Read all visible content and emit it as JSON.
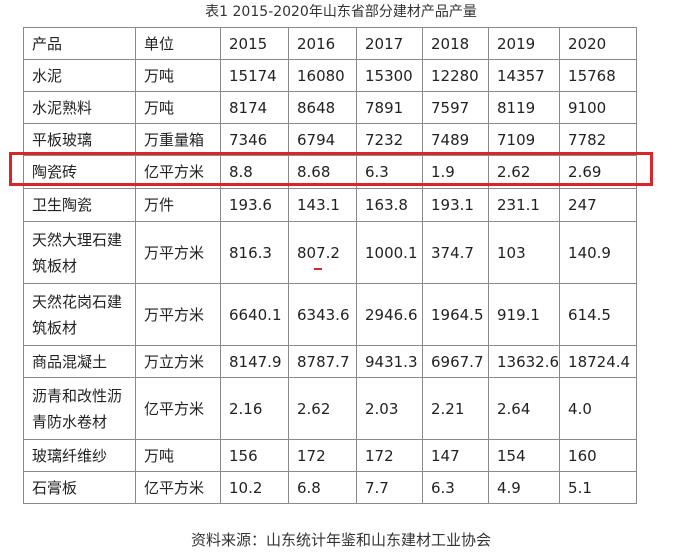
{
  "title": "表1  2015-2020年山东省部分建材产品产量",
  "table": {
    "headers": [
      "产品",
      "单位",
      "2015",
      "2016",
      "2017",
      "2018",
      "2019",
      "2020"
    ],
    "rows": [
      [
        "水泥",
        "万吨",
        "15174",
        "16080",
        "15300",
        "12280",
        "14357",
        "15768"
      ],
      [
        "水泥熟料",
        "万吨",
        "8174",
        "8648",
        "7891",
        "7597",
        "8119",
        "9100"
      ],
      [
        "平板玻璃",
        "万重量箱",
        "7346",
        "6794",
        "7232",
        "7489",
        "7109",
        "7782"
      ],
      [
        "陶瓷砖",
        "亿平方米",
        "8.8",
        "8.68",
        "6.3",
        "1.9",
        "2.62",
        "2.69"
      ],
      [
        "卫生陶瓷",
        "万件",
        "193.6",
        "143.1",
        "163.8",
        "193.1",
        "231.1",
        "247"
      ],
      [
        "天然大理石建筑板材",
        "万平方米",
        "816.3",
        "807.2",
        "1000.1",
        "374.7",
        "103",
        "140.9"
      ],
      [
        "天然花岗石建筑板材",
        "万平方米",
        "6640.1",
        "6343.6",
        "2946.6",
        "1964.5",
        "919.1",
        "614.5"
      ],
      [
        "商品混凝土",
        "万立方米",
        "8147.9",
        "8787.7",
        "9431.3",
        "6967.7",
        "13632.6",
        "18724.4"
      ],
      [
        "沥青和改性沥青防水卷材",
        "亿平方米",
        "2.16",
        "2.62",
        "2.03",
        "2.21",
        "2.64",
        "4.0"
      ],
      [
        "玻璃纤维纱",
        "万吨",
        "156",
        "172",
        "172",
        "147",
        "154",
        "160"
      ],
      [
        "石膏板",
        "亿平方米",
        "10.2",
        "6.8",
        "7.7",
        "6.3",
        "4.9",
        "5.1"
      ]
    ]
  },
  "source": "资料来源：山东统计年鉴和山东建材工业协会",
  "colors": {
    "highlight": "#d9262a",
    "border": "#8a8a8a"
  }
}
